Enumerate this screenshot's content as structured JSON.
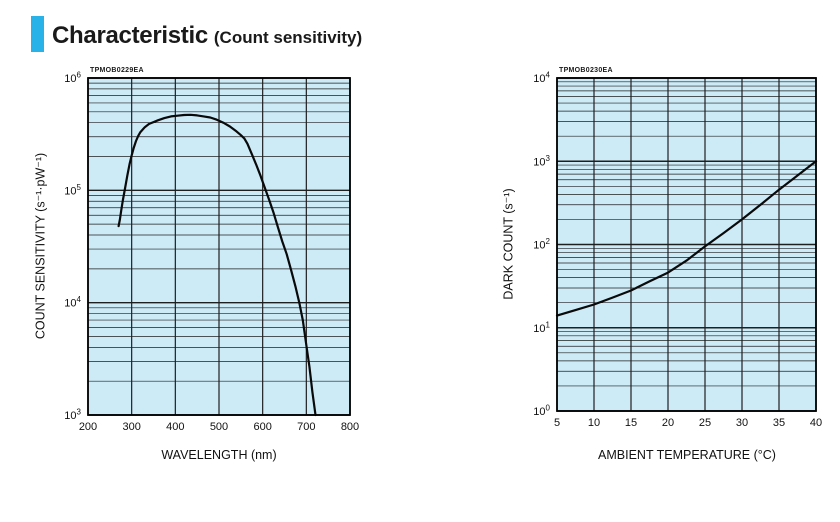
{
  "header": {
    "title": "Characteristic",
    "subtitle": "(Count sensitivity)",
    "accent_color": "#29b2e7"
  },
  "chart_data": [
    {
      "type": "line",
      "figure_code": "TPMOB0229EA",
      "title": "",
      "xlabel": "WAVELENGTH (nm)",
      "ylabel": "COUNT SENSITIVITY (s⁻¹·pW⁻¹)",
      "xlim": [
        200,
        800
      ],
      "xticks": [
        200,
        300,
        400,
        500,
        600,
        700,
        800
      ],
      "y_scale": "log",
      "ylim": [
        1000,
        1000000
      ],
      "y_tick_exponents": [
        3,
        4,
        5,
        6
      ],
      "grid": "on (log minor + major)",
      "legend": "none",
      "bg_color": "#cdeaf7",
      "grid_color": "#1f1f1f",
      "line_color": "#0a0a0a",
      "curve_name": "count-sensitivity-curve",
      "points": [
        [
          270,
          48000
        ],
        [
          273,
          55000
        ],
        [
          276,
          66000
        ],
        [
          280,
          82000
        ],
        [
          285,
          105000
        ],
        [
          290,
          135000
        ],
        [
          295,
          170000
        ],
        [
          300,
          205000
        ],
        [
          305,
          240000
        ],
        [
          310,
          275000
        ],
        [
          315,
          305000
        ],
        [
          320,
          330000
        ],
        [
          330,
          365000
        ],
        [
          340,
          390000
        ],
        [
          350,
          405000
        ],
        [
          360,
          420000
        ],
        [
          375,
          440000
        ],
        [
          390,
          455000
        ],
        [
          405,
          462000
        ],
        [
          420,
          468000
        ],
        [
          435,
          470000
        ],
        [
          450,
          465000
        ],
        [
          465,
          455000
        ],
        [
          480,
          445000
        ],
        [
          495,
          425000
        ],
        [
          510,
          400000
        ],
        [
          525,
          370000
        ],
        [
          540,
          335000
        ],
        [
          550,
          310000
        ],
        [
          558,
          290000
        ],
        [
          565,
          260000
        ],
        [
          575,
          210000
        ],
        [
          585,
          170000
        ],
        [
          595,
          135000
        ],
        [
          605,
          105000
        ],
        [
          615,
          82000
        ],
        [
          625,
          63000
        ],
        [
          635,
          47000
        ],
        [
          645,
          35000
        ],
        [
          655,
          27000
        ],
        [
          665,
          19500
        ],
        [
          675,
          14000
        ],
        [
          684,
          10000
        ],
        [
          692,
          7000
        ],
        [
          700,
          4200
        ],
        [
          707,
          2700
        ],
        [
          714,
          1600
        ],
        [
          721,
          1000
        ]
      ]
    },
    {
      "type": "line",
      "figure_code": "TPMOB0230EA",
      "title": "",
      "xlabel": "AMBIENT TEMPERATURE (°C)",
      "ylabel": "DARK COUNT (s⁻¹)",
      "xlim": [
        5,
        40
      ],
      "xticks": [
        5,
        10,
        15,
        20,
        25,
        30,
        35,
        40
      ],
      "y_scale": "log",
      "ylim": [
        1,
        10000
      ],
      "y_tick_exponents": [
        0,
        1,
        2,
        3,
        4
      ],
      "grid": "on (log minor + major)",
      "legend": "none",
      "bg_color": "#cdeaf7",
      "grid_color": "#1f1f1f",
      "line_color": "#0a0a0a",
      "curve_name": "dark-count-curve",
      "points": [
        [
          5,
          14
        ],
        [
          7.5,
          16.3
        ],
        [
          10,
          19
        ],
        [
          12.5,
          23
        ],
        [
          15,
          28
        ],
        [
          17.5,
          36
        ],
        [
          20,
          46
        ],
        [
          22.5,
          64
        ],
        [
          25,
          95
        ],
        [
          27.5,
          137
        ],
        [
          30,
          200
        ],
        [
          32.5,
          300
        ],
        [
          35,
          455
        ],
        [
          37.5,
          675
        ],
        [
          40,
          1000
        ]
      ]
    }
  ]
}
